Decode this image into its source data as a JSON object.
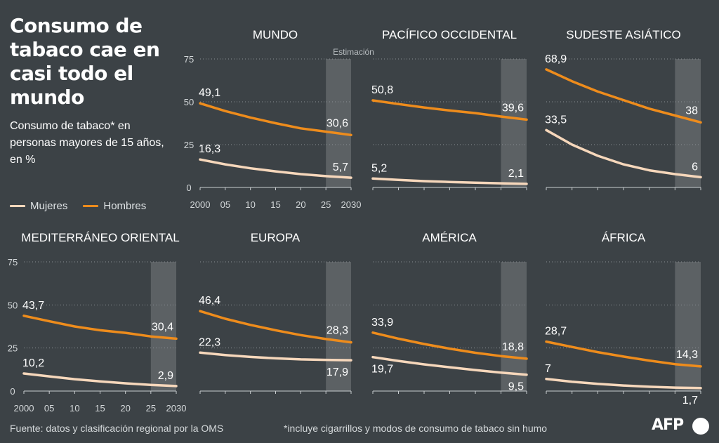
{
  "title": "Consumo de tabaco cae en casi todo el mundo",
  "subtitle": "Consumo de tabaco* en personas mayores de 15 años, en %",
  "legend": {
    "women": "Mujeres",
    "men": "Hombres"
  },
  "colors": {
    "women": "#f6d7bb",
    "men": "#ee8c1c",
    "estimate_band": "#5c6164",
    "background": "#3c4246"
  },
  "source": "Fuente: datos y clasificación regional por la OMS",
  "note": "*incluye cigarrillos y modos de consumo de tabaco sin humo",
  "logo": "AFP",
  "estimate_label": "Estimación",
  "y_ticks": [
    "75",
    "50",
    "25",
    "0"
  ],
  "x_ticks": [
    "2000",
    "05",
    "10",
    "15",
    "20",
    "25",
    "2030"
  ],
  "chart_data": [
    {
      "type": "line",
      "title": "MUNDO",
      "x": [
        2000,
        2005,
        2010,
        2015,
        2020,
        2025,
        2030
      ],
      "ylim": [
        0,
        75
      ],
      "estimate_from": 2025,
      "series": [
        {
          "name": "Hombres",
          "values": [
            49.1,
            44.6,
            40.8,
            37.5,
            34.5,
            32.6,
            30.6
          ]
        },
        {
          "name": "Mujeres",
          "values": [
            16.3,
            13.5,
            11.2,
            9.4,
            7.8,
            6.6,
            5.7
          ]
        }
      ],
      "labels": {
        "men_start": "49,1",
        "men_end": "30,6",
        "women_start": "16,3",
        "women_end": "5,7"
      }
    },
    {
      "type": "line",
      "title": "PACÍFICO OCCIDENTAL",
      "x": [
        2000,
        2005,
        2010,
        2015,
        2020,
        2025,
        2030
      ],
      "ylim": [
        0,
        75
      ],
      "estimate_from": 2025,
      "series": [
        {
          "name": "Hombres",
          "values": [
            50.8,
            48.7,
            46.7,
            44.9,
            43.4,
            41.4,
            39.6
          ]
        },
        {
          "name": "Mujeres",
          "values": [
            5.2,
            4.4,
            3.7,
            3.2,
            2.8,
            2.4,
            2.1
          ]
        }
      ],
      "labels": {
        "men_start": "50,8",
        "men_end": "39,6",
        "women_start": "5,2",
        "women_end": "2,1"
      }
    },
    {
      "type": "line",
      "title": "SUDESTE ASIÁTICO",
      "x": [
        2000,
        2005,
        2010,
        2015,
        2020,
        2025,
        2030
      ],
      "ylim": [
        0,
        75
      ],
      "estimate_from": 2025,
      "series": [
        {
          "name": "Hombres",
          "values": [
            68.9,
            62.0,
            56.0,
            51.0,
            46.0,
            42.0,
            38.0
          ]
        },
        {
          "name": "Mujeres",
          "values": [
            33.5,
            25.0,
            18.5,
            13.5,
            10.0,
            7.8,
            6.0
          ]
        }
      ],
      "labels": {
        "men_start": "68,9",
        "men_end": "38",
        "women_start": "33,5",
        "women_end": "6"
      }
    },
    {
      "type": "line",
      "title": "MEDITERRÁNEO ORIENTAL",
      "x": [
        2000,
        2005,
        2010,
        2015,
        2020,
        2025,
        2030
      ],
      "ylim": [
        0,
        75
      ],
      "estimate_from": 2025,
      "series": [
        {
          "name": "Hombres",
          "values": [
            43.7,
            40.5,
            37.5,
            35.3,
            33.8,
            31.7,
            30.4
          ]
        },
        {
          "name": "Mujeres",
          "values": [
            10.2,
            8.5,
            6.9,
            5.6,
            4.5,
            3.6,
            2.9
          ]
        }
      ],
      "labels": {
        "men_start": "43,7",
        "men_end": "30,4",
        "women_start": "10,2",
        "women_end": "2,9"
      }
    },
    {
      "type": "line",
      "title": "EUROPA",
      "x": [
        2000,
        2005,
        2010,
        2015,
        2020,
        2025,
        2030
      ],
      "ylim": [
        0,
        75
      ],
      "estimate_from": 2025,
      "series": [
        {
          "name": "Hombres",
          "values": [
            46.4,
            42.0,
            38.4,
            35.3,
            32.5,
            30.2,
            28.3
          ]
        },
        {
          "name": "Mujeres",
          "values": [
            22.3,
            20.9,
            19.8,
            19.0,
            18.4,
            18.1,
            17.9
          ]
        }
      ],
      "labels": {
        "men_start": "46,4",
        "men_end": "28,3",
        "women_start": "22,3",
        "women_end": "17,9"
      }
    },
    {
      "type": "line",
      "title": "AMÉRICA",
      "x": [
        2000,
        2005,
        2010,
        2015,
        2020,
        2025,
        2030
      ],
      "ylim": [
        0,
        75
      ],
      "estimate_from": 2025,
      "series": [
        {
          "name": "Hombres",
          "values": [
            33.9,
            30.4,
            27.3,
            24.6,
            22.2,
            20.3,
            18.8
          ]
        },
        {
          "name": "Mujeres",
          "values": [
            19.7,
            17.5,
            15.5,
            13.8,
            12.2,
            10.7,
            9.5
          ]
        }
      ],
      "labels": {
        "men_start": "33,9",
        "men_end": "18,8",
        "women_start": "19,7",
        "women_end": "9,5"
      }
    },
    {
      "type": "line",
      "title": "ÁFRICA",
      "x": [
        2000,
        2005,
        2010,
        2015,
        2020,
        2025,
        2030
      ],
      "ylim": [
        0,
        75
      ],
      "estimate_from": 2025,
      "series": [
        {
          "name": "Hombres",
          "values": [
            28.7,
            25.6,
            22.6,
            20.0,
            17.7,
            15.6,
            14.3
          ]
        },
        {
          "name": "Mujeres",
          "values": [
            7.0,
            5.4,
            4.2,
            3.2,
            2.5,
            2.0,
            1.7
          ]
        }
      ],
      "labels": {
        "men_start": "28,7",
        "men_end": "14,3",
        "women_start": "7",
        "women_end": "1,7"
      }
    }
  ]
}
